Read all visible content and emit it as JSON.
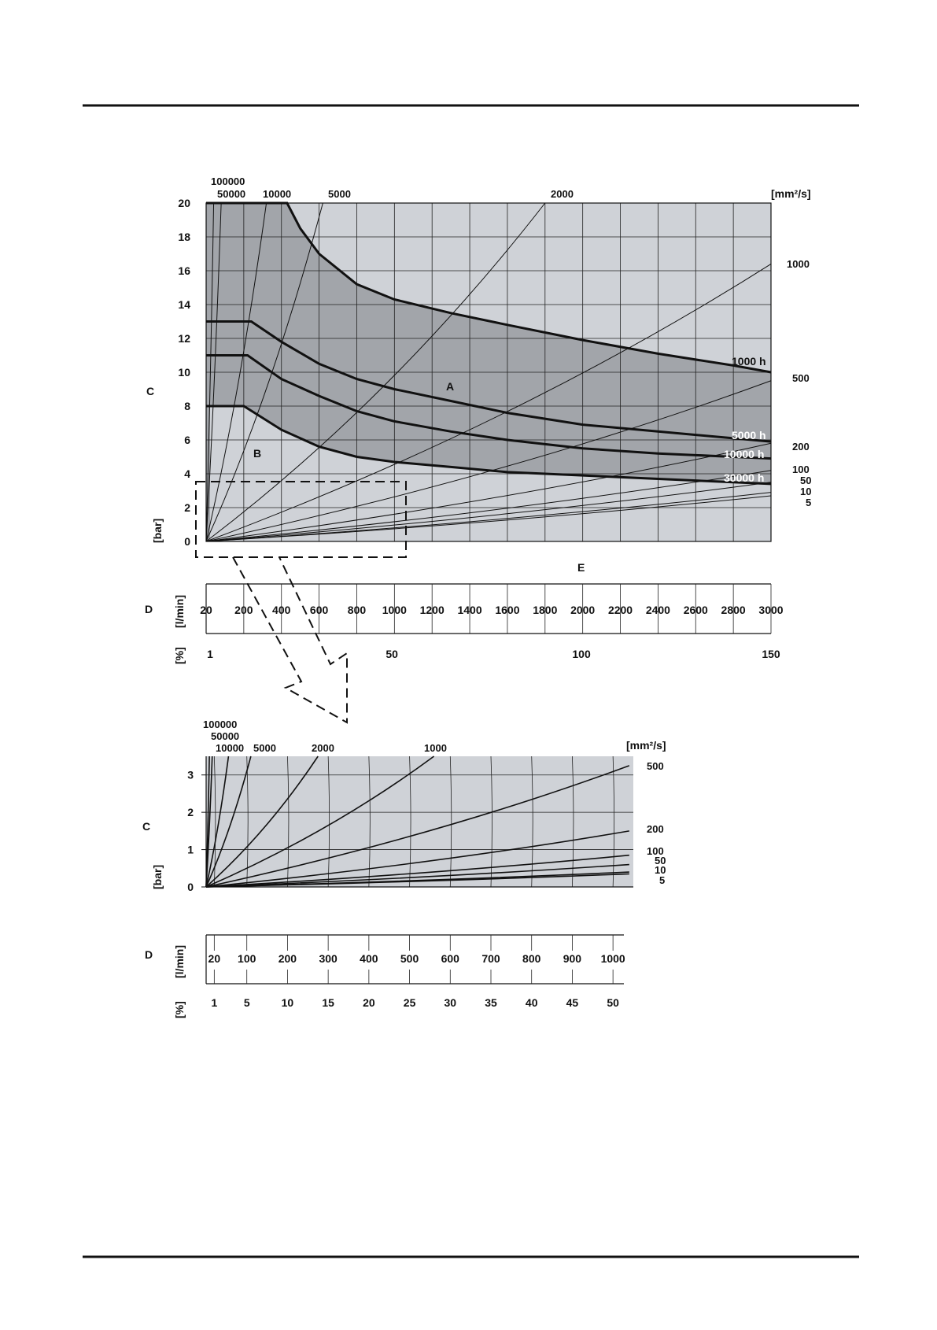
{
  "chart_data": [
    {
      "type": "line",
      "name_labels": {
        "y_axis_letter": "C",
        "y_unit": "[bar]",
        "x_axis_letter": "E",
        "viscosity_unit": "[mm²/s]",
        "region_a": "A",
        "region_b": "B"
      },
      "ylim": [
        0,
        20
      ],
      "y_ticks": [
        "0",
        "2",
        "4",
        "6",
        "8",
        "10",
        "12",
        "14",
        "16",
        "18",
        "20"
      ],
      "x_flow": {
        "letter": "D",
        "unit": "[l/min]",
        "ticks": [
          "20",
          "200",
          "400",
          "600",
          "800",
          "1000",
          "1200",
          "1400",
          "1600",
          "1800",
          "2000",
          "2200",
          "2400",
          "2600",
          "2800",
          "3000"
        ]
      },
      "x_percent": {
        "unit": "[%]",
        "ticks": [
          "1",
          "50",
          "100",
          "150"
        ],
        "values": [
          1,
          50,
          100,
          150
        ]
      },
      "xlim_flow": [
        0,
        3000
      ],
      "viscosity_lines": [
        {
          "label": "100000",
          "end_x": 40,
          "end_y": 20
        },
        {
          "label": "50000",
          "end_x": 80,
          "end_y": 20
        },
        {
          "label": "10000",
          "end_x": 320,
          "end_y": 20
        },
        {
          "label": "5000",
          "end_x": 620,
          "end_y": 20
        },
        {
          "label": "2000",
          "end_x": 1800,
          "end_y": 20
        },
        {
          "label": "1000",
          "end_x": 3000,
          "end_y": 16.4
        },
        {
          "label": "500",
          "end_x": 3000,
          "end_y": 9.5
        },
        {
          "label": "200",
          "end_x": 3000,
          "end_y": 5.8
        },
        {
          "label": "100",
          "end_x": 3000,
          "end_y": 4.2
        },
        {
          "label": "50",
          "end_x": 3000,
          "end_y": 3.5
        },
        {
          "label": "10",
          "end_x": 3000,
          "end_y": 2.9
        },
        {
          "label": "5",
          "end_x": 3000,
          "end_y": 2.7
        }
      ],
      "life_curves": [
        {
          "name": "1000 h",
          "points": [
            [
              0,
              20
            ],
            [
              430,
              20
            ],
            [
              500,
              18.5
            ],
            [
              600,
              17
            ],
            [
              800,
              15.2
            ],
            [
              1000,
              14.3
            ],
            [
              1300,
              13.5
            ],
            [
              1600,
              12.8
            ],
            [
              2000,
              11.9
            ],
            [
              2400,
              11.1
            ],
            [
              2800,
              10.4
            ],
            [
              3000,
              10
            ]
          ]
        },
        {
          "name": "5000 h",
          "points": [
            [
              0,
              13
            ],
            [
              240,
              13
            ],
            [
              400,
              11.8
            ],
            [
              600,
              10.5
            ],
            [
              800,
              9.6
            ],
            [
              1000,
              9
            ],
            [
              1300,
              8.3
            ],
            [
              1600,
              7.6
            ],
            [
              2000,
              6.9
            ],
            [
              2400,
              6.5
            ],
            [
              2800,
              6.1
            ],
            [
              3000,
              5.9
            ]
          ]
        },
        {
          "name": "10000 h",
          "points": [
            [
              0,
              11
            ],
            [
              220,
              11
            ],
            [
              400,
              9.6
            ],
            [
              600,
              8.6
            ],
            [
              800,
              7.7
            ],
            [
              1000,
              7.1
            ],
            [
              1300,
              6.5
            ],
            [
              1600,
              6
            ],
            [
              2000,
              5.5
            ],
            [
              2400,
              5.2
            ],
            [
              2800,
              5
            ],
            [
              3000,
              4.9
            ]
          ]
        },
        {
          "name": "30000 h",
          "points": [
            [
              0,
              8
            ],
            [
              200,
              8
            ],
            [
              400,
              6.6
            ],
            [
              600,
              5.6
            ],
            [
              800,
              5
            ],
            [
              1000,
              4.7
            ],
            [
              1300,
              4.4
            ],
            [
              1600,
              4.1
            ],
            [
              2000,
              3.9
            ],
            [
              2400,
              3.7
            ],
            [
              2800,
              3.5
            ],
            [
              3000,
              3.4
            ]
          ]
        }
      ]
    },
    {
      "type": "line",
      "name_labels": {
        "y_axis_letter": "C",
        "y_unit": "[bar]",
        "viscosity_unit": "[mm²/s]"
      },
      "ylim": [
        0,
        3.5
      ],
      "y_ticks": [
        "0",
        "1",
        "2",
        "3"
      ],
      "x_flow": {
        "letter": "D",
        "unit": "[l/min]",
        "ticks": [
          "20",
          "100",
          "200",
          "300",
          "400",
          "500",
          "600",
          "700",
          "800",
          "900",
          "1000"
        ]
      },
      "x_percent": {
        "unit": "[%]",
        "ticks": [
          "1",
          "5",
          "10",
          "15",
          "20",
          "25",
          "30",
          "35",
          "40",
          "45",
          "50"
        ]
      },
      "xlim_flow": [
        0,
        1050
      ],
      "viscosity_lines": [
        {
          "label": "100000",
          "end_x": 8,
          "end_y": 3.5
        },
        {
          "label": "50000",
          "end_x": 15,
          "end_y": 3.5
        },
        {
          "label": "10000",
          "end_x": 55,
          "end_y": 3.5
        },
        {
          "label": "5000",
          "end_x": 110,
          "end_y": 3.5
        },
        {
          "label": "2000",
          "end_x": 275,
          "end_y": 3.5
        },
        {
          "label": "1000",
          "end_x": 560,
          "end_y": 3.5
        },
        {
          "label": "500",
          "end_x": 1040,
          "end_y": 3.25
        },
        {
          "label": "200",
          "end_x": 1040,
          "end_y": 1.5
        },
        {
          "label": "100",
          "end_x": 1040,
          "end_y": 0.85
        },
        {
          "label": "50",
          "end_x": 1040,
          "end_y": 0.6
        },
        {
          "label": "10",
          "end_x": 1040,
          "end_y": 0.4
        },
        {
          "label": "5",
          "end_x": 1040,
          "end_y": 0.35
        }
      ]
    }
  ]
}
